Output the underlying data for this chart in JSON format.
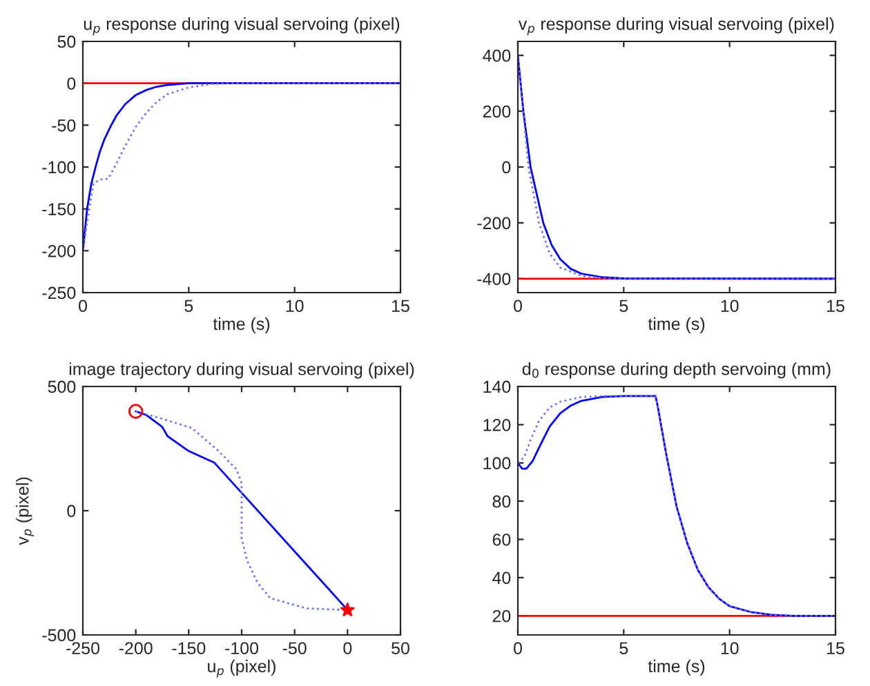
{
  "chart_data": [
    {
      "type": "line",
      "title": "u$_{p}$ response during visual servoing (pixel)",
      "xlabel": "time (s)",
      "xlim": [
        0,
        15
      ],
      "xticks": [
        0,
        5,
        10,
        15
      ],
      "ylim": [
        -250,
        50
      ],
      "yticks": [
        -250,
        -200,
        -150,
        -100,
        -50,
        0,
        50
      ],
      "grid": false,
      "legend": false,
      "ref_lines": [
        {
          "axis": "y",
          "value": 0,
          "color": "#ff0000"
        }
      ],
      "series": [
        {
          "color": "#0000ff",
          "line_style": "solid",
          "x": [
            0,
            0.2,
            0.4,
            0.6,
            0.8,
            1.0,
            1.3,
            1.6,
            2.0,
            2.5,
            3,
            3.5,
            4,
            5,
            15
          ],
          "values": [
            -200,
            -150,
            -120,
            -100,
            -82,
            -68,
            -52,
            -38,
            -25,
            -14,
            -8,
            -4,
            -2,
            0,
            0
          ]
        },
        {
          "color": "#6f6fff",
          "line_style": "dotted",
          "x": [
            0,
            0.3,
            0.5,
            0.8,
            1.2,
            1.5,
            2,
            2.5,
            3,
            3.5,
            4,
            5,
            6,
            7,
            15
          ],
          "values": [
            -200,
            -150,
            -120,
            -115,
            -114,
            -100,
            -75,
            -52,
            -35,
            -22,
            -13,
            -5,
            -1,
            0,
            0
          ]
        }
      ]
    },
    {
      "type": "line",
      "title": "v$_{p}$ response during visual servoing (pixel)",
      "xlabel": "time (s)",
      "xlim": [
        0,
        15
      ],
      "xticks": [
        0,
        5,
        10,
        15
      ],
      "ylim": [
        -450,
        450
      ],
      "yticks": [
        -400,
        -200,
        0,
        200,
        400
      ],
      "grid": false,
      "legend": false,
      "ref_lines": [
        {
          "axis": "y",
          "value": -400,
          "color": "#ff0000"
        }
      ],
      "series": [
        {
          "color": "#0000ff",
          "line_style": "solid",
          "x": [
            0,
            0.26,
            0.6,
            1.2,
            1.6,
            2,
            2.5,
            3,
            4,
            5,
            15
          ],
          "values": [
            400,
            200,
            0,
            -200,
            -280,
            -330,
            -365,
            -382,
            -395,
            -399,
            -400
          ]
        },
        {
          "color": "#6f6fff",
          "line_style": "dotted",
          "x": [
            0,
            0.5,
            1.0,
            1.5,
            2,
            3,
            4,
            5,
            15
          ],
          "values": [
            400,
            0,
            -200,
            -310,
            -360,
            -390,
            -398,
            -400,
            -400
          ]
        }
      ]
    },
    {
      "type": "line",
      "title": "image trajectory during visual servoing (pixel)",
      "xlabel": "u$_{p}$ (pixel)",
      "ylabel": "v$_{p}$ (pixel)",
      "xlim": [
        -250,
        50
      ],
      "xticks": [
        -250,
        -200,
        -150,
        -100,
        -50,
        0,
        50
      ],
      "ylim": [
        -500,
        500
      ],
      "yticks": [
        -500,
        0,
        500
      ],
      "grid": false,
      "legend": false,
      "series": [
        {
          "color": "#0000ff",
          "line_style": "solid",
          "x": [
            -200,
            -190,
            -175,
            -170,
            -160,
            -150,
            -126,
            -100,
            -50,
            -20,
            -5,
            0
          ],
          "values": [
            400,
            385,
            337,
            300,
            270,
            240,
            194,
            72,
            -164,
            -305,
            -376,
            -400
          ]
        },
        {
          "color": "#6f6fff",
          "line_style": "dotted",
          "x": [
            -200,
            -175,
            -147,
            -122,
            -105,
            -100,
            -100,
            -100,
            -95,
            -85,
            -73,
            -39,
            0
          ],
          "values": [
            400,
            370,
            333,
            241,
            167,
            111,
            0,
            -111,
            -200,
            -290,
            -352,
            -393,
            -400
          ]
        },
        {
          "type": "scatter",
          "color": "#ff0000",
          "marker": "circle",
          "x": [
            -200
          ],
          "values": [
            400
          ]
        },
        {
          "type": "scatter",
          "color": "#ff0000",
          "marker": "star",
          "x": [
            0
          ],
          "values": [
            -400
          ]
        }
      ]
    },
    {
      "type": "line",
      "title": "d$_{0}$ response during depth servoing (mm)",
      "xlabel": "time (s)",
      "xlim": [
        0,
        15
      ],
      "xticks": [
        0,
        5,
        10,
        15
      ],
      "ylim": [
        10,
        140
      ],
      "yticks": [
        20,
        40,
        60,
        80,
        100,
        120,
        140
      ],
      "grid": false,
      "legend": false,
      "ref_lines": [
        {
          "axis": "y",
          "value": 20,
          "color": "#ff0000"
        }
      ],
      "series": [
        {
          "color": "#0000ff",
          "line_style": "solid",
          "x": [
            0,
            0.2,
            0.4,
            0.7,
            1,
            1.5,
            2,
            2.5,
            3,
            4,
            5,
            6.5,
            6.6,
            7,
            7.5,
            8,
            8.5,
            9,
            9.5,
            10,
            11,
            12,
            13,
            15
          ],
          "values": [
            100,
            97,
            97,
            101,
            108,
            119,
            126,
            130,
            132.5,
            134.5,
            135,
            135,
            130,
            105,
            77,
            58,
            44,
            35,
            29,
            25,
            22,
            20.5,
            20,
            20
          ]
        },
        {
          "color": "#6f6fff",
          "line_style": "dotted",
          "x": [
            0,
            0.3,
            0.6,
            1,
            1.5,
            2,
            3,
            4,
            6.5,
            6.6,
            7,
            7.5,
            8,
            8.5,
            9,
            9.5,
            10,
            11,
            12,
            13,
            15
          ],
          "values": [
            100,
            103,
            112,
            122,
            129,
            132,
            134.5,
            135,
            135,
            130,
            105,
            77,
            58,
            44,
            35,
            29,
            25,
            22,
            20.5,
            20,
            20
          ]
        }
      ]
    }
  ]
}
